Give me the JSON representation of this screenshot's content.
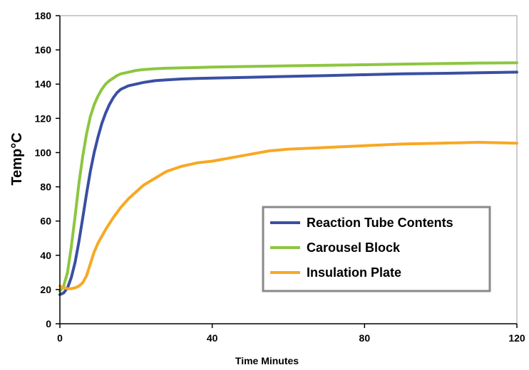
{
  "chart_data": {
    "type": "line",
    "title": "",
    "xlabel": "Time Minutes",
    "ylabel": "Temp°C",
    "xlim": [
      0,
      120
    ],
    "ylim": [
      0,
      180
    ],
    "x_ticks": [
      0,
      40,
      80,
      120
    ],
    "y_ticks": [
      0,
      20,
      40,
      60,
      80,
      100,
      120,
      140,
      160,
      180
    ],
    "grid": false,
    "legend_position": "bottom-right",
    "series": [
      {
        "name": "Reaction Tube Contents",
        "color": "#3a4fa3",
        "x": [
          0,
          1,
          2,
          3,
          4,
          5,
          6,
          7,
          8,
          9,
          10,
          11,
          12,
          13,
          14,
          15,
          16,
          18,
          20,
          22,
          25,
          28,
          32,
          36,
          40,
          50,
          60,
          70,
          80,
          90,
          100,
          110,
          120
        ],
        "y": [
          17,
          18,
          21,
          27,
          36,
          48,
          62,
          76,
          89,
          100,
          109,
          117,
          123,
          128,
          132,
          135,
          137,
          139,
          140,
          141,
          142,
          142.5,
          143,
          143.3,
          143.5,
          144,
          144.5,
          145,
          145.5,
          146,
          146.3,
          146.6,
          147
        ]
      },
      {
        "name": "Carousel Block",
        "color": "#8cc63f",
        "x": [
          0,
          1,
          2,
          3,
          4,
          5,
          6,
          7,
          8,
          9,
          10,
          11,
          12,
          13,
          14,
          15,
          16,
          18,
          20,
          22,
          25,
          28,
          32,
          36,
          40,
          50,
          60,
          70,
          80,
          90,
          100,
          110,
          120
        ],
        "y": [
          19,
          22,
          30,
          45,
          63,
          82,
          98,
          111,
          121,
          128,
          133,
          137,
          140,
          142,
          143.5,
          145,
          146,
          147,
          148,
          148.5,
          149,
          149.3,
          149.5,
          149.7,
          150,
          150.3,
          150.7,
          151,
          151.3,
          151.7,
          152,
          152.3,
          152.5
        ]
      },
      {
        "name": "Insulation Plate",
        "color": "#f7a823",
        "x": [
          0,
          1,
          2,
          3,
          4,
          5,
          6,
          7,
          8,
          9,
          10,
          12,
          14,
          16,
          18,
          20,
          22,
          25,
          28,
          32,
          36,
          40,
          45,
          50,
          55,
          60,
          70,
          80,
          90,
          100,
          110,
          120
        ],
        "y": [
          22,
          21,
          20.5,
          20.5,
          21,
          22,
          24,
          28,
          35,
          42,
          47,
          55,
          62,
          68,
          73,
          77,
          81,
          85,
          89,
          92,
          94,
          95,
          97,
          99,
          101,
          102,
          103,
          104,
          105,
          105.5,
          106,
          105.5
        ]
      }
    ]
  }
}
